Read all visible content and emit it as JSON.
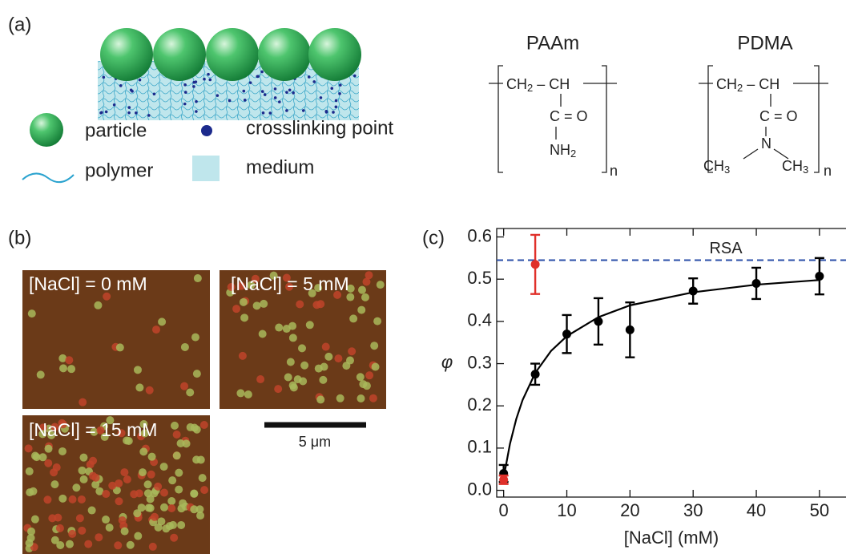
{
  "panel_labels": [
    "(a)",
    "(b)",
    "(c)"
  ],
  "schematic": {
    "legend": [
      "particle",
      "crosslinking point",
      "polymer",
      "medium"
    ]
  },
  "structures": [
    {
      "name": "PAAm",
      "backbone": [
        "CH",
        "2",
        "CH"
      ],
      "carbonyl": "C = O",
      "side": [
        "NH",
        "2"
      ],
      "repeat": "n"
    },
    {
      "name": "PDMA",
      "backbone": [
        "CH",
        "2",
        "CH"
      ],
      "carbonyl": "C = O",
      "nitrogen": "N",
      "side": [
        "CH",
        "3",
        "CH",
        "3"
      ],
      "repeat": "n"
    }
  ],
  "micrographs": {
    "labels": [
      "[NaCl] = 0 mM",
      "[NaCl] = 5 mM",
      "[NaCl] = 15 mM"
    ],
    "scale_bar": "5 μm"
  },
  "chart_data": {
    "type": "scatter",
    "x_label": "[NaCl] (mM)",
    "y_label": "φ",
    "xlim": [
      -1.1,
      54.2
    ],
    "ylim": [
      -0.016,
      0.62
    ],
    "xticks": [
      0,
      10,
      20,
      30,
      40,
      50
    ],
    "yticks": [
      {
        "value": 0,
        "label": "0.0"
      },
      0.1,
      0.2,
      0.3,
      0.4,
      0.5,
      0.6
    ],
    "series": [
      {
        "color": "#000000",
        "x": [
          0,
          5,
          10,
          15,
          20,
          30,
          40,
          50
        ],
        "values": [
          0.04,
          0.275,
          0.37,
          0.4,
          0.38,
          0.472,
          0.49,
          0.507
        ],
        "errors": [
          0.02,
          0.025,
          0.045,
          0.055,
          0.065,
          0.03,
          0.037,
          0.043
        ]
      },
      {
        "color": "#e0302a",
        "x": [
          0,
          5
        ],
        "values": [
          0.025,
          0.535
        ],
        "errors": [
          0.01,
          0.07
        ]
      }
    ],
    "fit": {
      "color": "#000000",
      "x": [
        0,
        1,
        2,
        3,
        5,
        7.5,
        10,
        15,
        20,
        30,
        40,
        50
      ],
      "values": [
        0.03,
        0.11,
        0.169,
        0.214,
        0.278,
        0.33,
        0.365,
        0.41,
        0.438,
        0.469,
        0.487,
        0.498
      ]
    },
    "reference_line": {
      "value": 0.545,
      "label": "RSA",
      "color": "#2a4ea8"
    }
  }
}
